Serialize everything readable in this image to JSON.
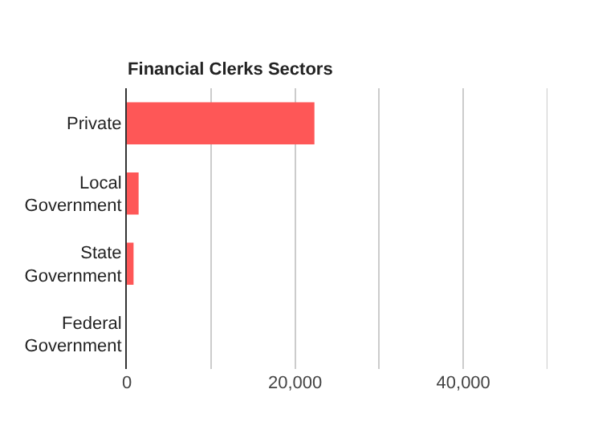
{
  "chart_data": {
    "type": "bar",
    "orientation": "horizontal",
    "title": "Financial Clerks Sectors",
    "categories": [
      "Private",
      "Local Government",
      "State Government",
      "Federal Government"
    ],
    "values": [
      22300,
      1400,
      800,
      0
    ],
    "color": "#fe5757",
    "xlim": [
      0,
      50000
    ],
    "xticks": [
      0,
      {
        "value": 10000,
        "label": null
      },
      {
        "value": 20000,
        "label": "20,000"
      },
      {
        "value": 30000,
        "label": null
      },
      {
        "value": 40000,
        "label": "40,000"
      },
      {
        "value": 50000,
        "label": null
      }
    ],
    "grid": "x"
  }
}
